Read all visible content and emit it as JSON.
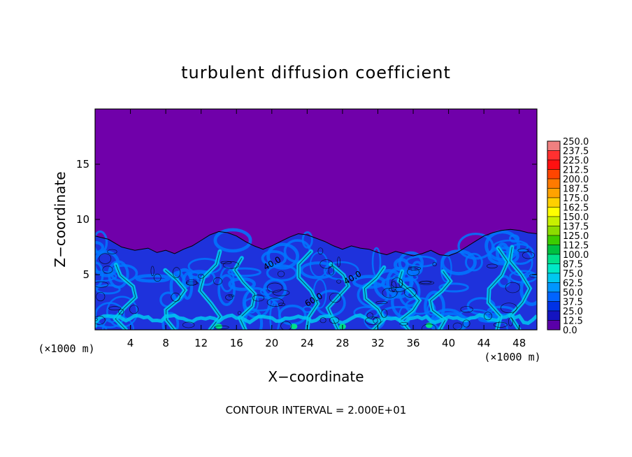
{
  "chart_data": {
    "type": "heatmap",
    "title": "turbulent diffusion coefficient",
    "xlabel": "X−coordinate",
    "ylabel": "Z−coordinate",
    "x_unit_left": "(×1000 m)",
    "x_unit_right": "(×1000 m)",
    "footer": "CONTOUR INTERVAL = 2.000E+01",
    "xlim": [
      0,
      50
    ],
    "ylim": [
      0,
      20
    ],
    "x_ticks": [
      4,
      8,
      12,
      16,
      20,
      24,
      28,
      32,
      36,
      40,
      44,
      48
    ],
    "y_ticks": [
      5,
      10,
      15
    ],
    "contour_labels": [
      {
        "x": 20.2,
        "y": 5.8,
        "text": "40.0"
      },
      {
        "x": 29.3,
        "y": 4.5,
        "text": "40.0"
      },
      {
        "x": 24.9,
        "y": 2.5,
        "text": "60.0"
      }
    ],
    "boundary_height": [
      [
        0,
        8.5
      ],
      [
        1.5,
        8.2
      ],
      [
        3,
        7.5
      ],
      [
        4.5,
        7.2
      ],
      [
        6,
        7.4
      ],
      [
        7,
        7.0
      ],
      [
        8,
        7.2
      ],
      [
        9,
        6.9
      ],
      [
        10,
        7.3
      ],
      [
        11,
        7.6
      ],
      [
        12,
        8.1
      ],
      [
        13,
        8.6
      ],
      [
        14,
        8.9
      ],
      [
        15,
        8.8
      ],
      [
        16,
        8.5
      ],
      [
        17,
        8.0
      ],
      [
        18,
        7.6
      ],
      [
        19,
        7.3
      ],
      [
        20,
        7.6
      ],
      [
        21,
        8.0
      ],
      [
        22,
        8.4
      ],
      [
        23,
        8.7
      ],
      [
        24,
        8.6
      ],
      [
        25,
        8.3
      ],
      [
        26,
        8.0
      ],
      [
        27,
        7.6
      ],
      [
        28,
        7.3
      ],
      [
        29,
        7.6
      ],
      [
        30,
        7.4
      ],
      [
        31,
        7.3
      ],
      [
        32,
        7.0
      ],
      [
        33,
        6.8
      ],
      [
        34,
        7.1
      ],
      [
        35,
        6.9
      ],
      [
        36,
        6.7
      ],
      [
        37,
        6.9
      ],
      [
        38,
        7.2
      ],
      [
        39,
        6.8
      ],
      [
        40,
        6.7
      ],
      [
        41,
        7.0
      ],
      [
        42,
        7.5
      ],
      [
        43,
        8.0
      ],
      [
        44,
        8.5
      ],
      [
        45,
        8.8
      ],
      [
        46,
        9.0
      ],
      [
        47,
        9.1
      ],
      [
        48,
        9.0
      ],
      [
        49,
        8.8
      ],
      [
        50,
        8.7
      ]
    ],
    "colorbar": {
      "labels": [
        "250.0",
        "237.5",
        "225.0",
        "212.5",
        "200.0",
        "187.5",
        "175.0",
        "162.5",
        "150.0",
        "137.5",
        "125.0",
        "112.5",
        "100.0",
        "87.5",
        "75.0",
        "62.5",
        "50.0",
        "37.5",
        "25.0",
        "12.5",
        "0.0"
      ],
      "colors": [
        "#f08080",
        "#ff3030",
        "#ff1010",
        "#ff4500",
        "#ff7a00",
        "#ffa200",
        "#ffd000",
        "#ffff00",
        "#c8f000",
        "#8cdc00",
        "#3ccc00",
        "#00c040",
        "#00e08c",
        "#00e8c8",
        "#00c8f0",
        "#0096ff",
        "#0064ff",
        "#0032e6",
        "#1414c0",
        "#5a00a8"
      ],
      "background": "#7000aa"
    },
    "colors": {
      "stable_region": "#7000aa",
      "low": "#1e32dc",
      "medium": "#0078ff",
      "high": "#00c8f0",
      "peak": "#00e08c"
    }
  }
}
